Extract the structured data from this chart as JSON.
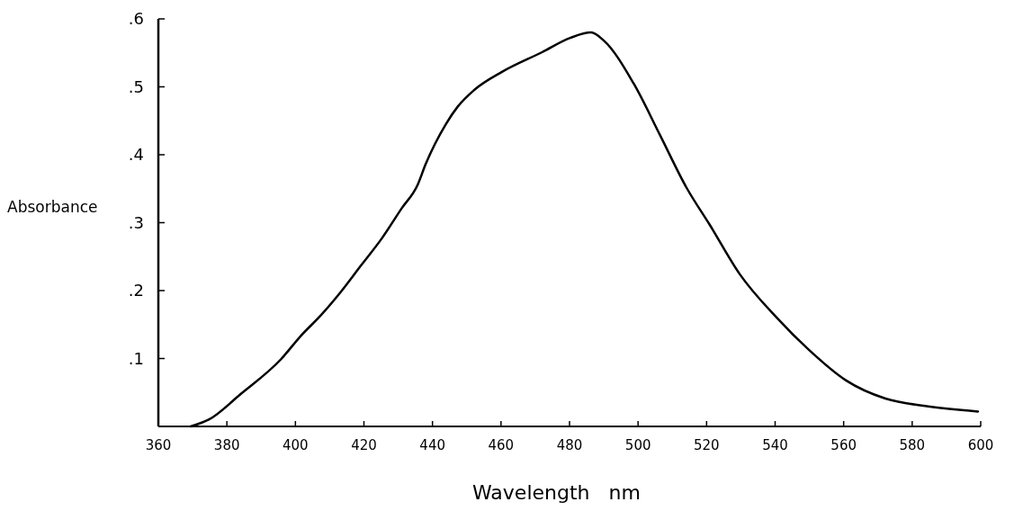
{
  "chart_data": {
    "type": "line",
    "xlabel": "Wavelength   nm",
    "ylabel": "Absorbance",
    "xlim": [
      360,
      600
    ],
    "ylim": [
      0,
      0.6
    ],
    "xticks": [
      360,
      380,
      400,
      420,
      440,
      460,
      480,
      500,
      520,
      540,
      560,
      580,
      600
    ],
    "yticks": [
      {
        "value": 0.1,
        "label": ".1"
      },
      {
        "value": 0.2,
        "label": ".2"
      },
      {
        "value": 0.3,
        "label": ".3"
      },
      {
        "value": 0.4,
        "label": ".4"
      },
      {
        "value": 0.5,
        "label": ".5"
      },
      {
        "value": 0.6,
        "label": ".6"
      }
    ],
    "grid": false,
    "series": [
      {
        "color": "#000000",
        "x": [
          369.4,
          374.7,
          384.1,
          395.8,
          401.7,
          407.5,
          413.4,
          419.3,
          425.1,
          431,
          435.7,
          438,
          443.9,
          447.4,
          452.1,
          460.3,
          472,
          480.2,
          486.3,
          490,
          498.7,
          506.4,
          514.2,
          520.9,
          529.7,
          540.3,
          550,
          560.6,
          572.2,
          583.8,
          599.2
        ],
        "values": [
          0,
          0.01,
          0.048,
          0.099,
          0.134,
          0.164,
          0.199,
          0.238,
          0.276,
          0.321,
          0.356,
          0.386,
          0.445,
          0.471,
          0.495,
          0.522,
          0.551,
          0.572,
          0.58,
          0.568,
          0.505,
          0.429,
          0.351,
          0.297,
          0.224,
          0.161,
          0.112,
          0.068,
          0.041,
          0.03,
          0.022
        ]
      }
    ]
  }
}
